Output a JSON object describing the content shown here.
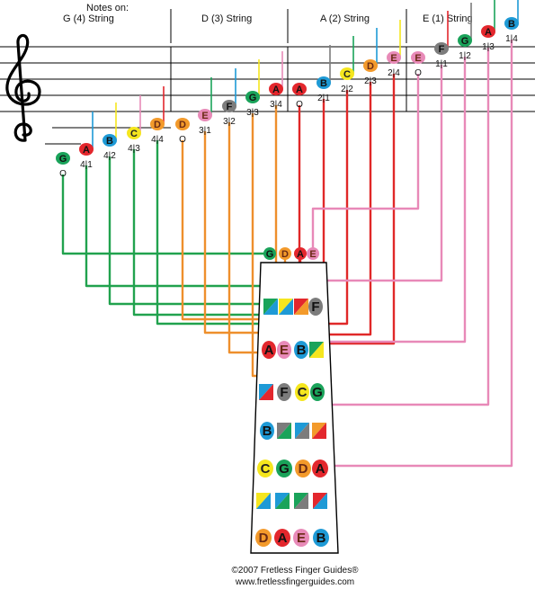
{
  "header": {
    "title": "Notes on:",
    "strings": [
      "G (4) String",
      "D (3) String",
      "A (2) String",
      "E (1) String"
    ]
  },
  "colors": {
    "G": "#1aa35a",
    "A": "#e3272d",
    "B": "#1e9ad6",
    "C": "#f5e61e",
    "D": "#f39a2b",
    "E": "#e88ab8",
    "F": "#7c7c7c",
    "line_G": "#21a24e",
    "line_D": "#ee8f2c",
    "line_A": "#e02828",
    "line_E": "#e889b8"
  },
  "staff_notes": [
    {
      "note": "G",
      "fingering": "O"
    },
    {
      "note": "A",
      "fingering": "4|1"
    },
    {
      "note": "B",
      "fingering": "4|2"
    },
    {
      "note": "C",
      "fingering": "4|3"
    },
    {
      "note": "D",
      "fingering": "4|4"
    },
    {
      "note": "D",
      "fingering": "O"
    },
    {
      "note": "E",
      "fingering": "3|1"
    },
    {
      "note": "F",
      "fingering": "3|2"
    },
    {
      "note": "G",
      "fingering": "3|3"
    },
    {
      "note": "A",
      "fingering": "3|4"
    },
    {
      "note": "A",
      "fingering": "O"
    },
    {
      "note": "B",
      "fingering": "2|1"
    },
    {
      "note": "C",
      "fingering": "2|2"
    },
    {
      "note": "D",
      "fingering": "2|3"
    },
    {
      "note": "E",
      "fingering": "2|4"
    },
    {
      "note": "E",
      "fingering": "O"
    },
    {
      "note": "F",
      "fingering": "1|1"
    },
    {
      "note": "G",
      "fingering": "1|2"
    },
    {
      "note": "A",
      "fingering": "1|3"
    },
    {
      "note": "B",
      "fingering": "1|4"
    }
  ],
  "board": {
    "open": [
      "G",
      "D",
      "A",
      "E"
    ],
    "rows": [
      {
        "label": "row-1",
        "cells": [
          "GB",
          "CB",
          "AD",
          "F"
        ]
      },
      {
        "label": "row-2",
        "cells": [
          "A",
          "E",
          "B",
          "GC"
        ]
      },
      {
        "label": "row-3",
        "cells": [
          "BA",
          "F",
          "C",
          "G"
        ]
      },
      {
        "label": "row-4",
        "cells": [
          "B",
          "FG",
          "BF",
          "DA"
        ]
      },
      {
        "label": "row-5",
        "cells": [
          "C",
          "G",
          "D",
          "A"
        ]
      },
      {
        "label": "row-6",
        "cells": [
          "CB",
          "BG",
          "GF",
          "AB"
        ]
      },
      {
        "label": "row-7",
        "cells": [
          "D",
          "A",
          "E",
          "B"
        ]
      }
    ]
  },
  "footer": {
    "copyright": "©2007 Fretless Finger Guides®",
    "url": "www.fretlessfingerguides.com"
  }
}
